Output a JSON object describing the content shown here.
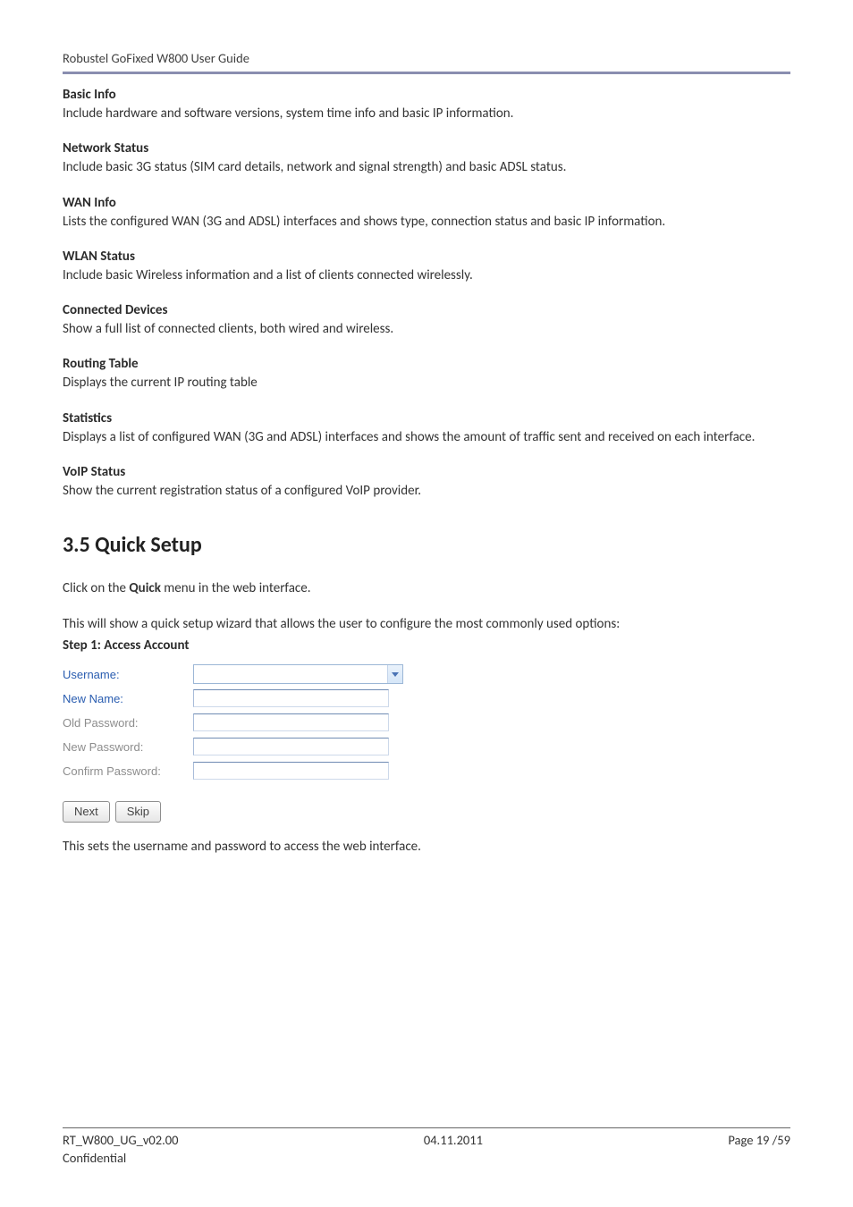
{
  "header": {
    "title": "Robustel GoFixed W800 User Guide"
  },
  "sections": [
    {
      "title": "Basic Info",
      "body": "Include hardware and software versions, system time info and basic IP information."
    },
    {
      "title": "Network Status",
      "body": "Include basic 3G status (SIM card details, network and signal strength) and basic ADSL status."
    },
    {
      "title": "WAN Info",
      "body": "Lists the configured WAN (3G and ADSL) interfaces and shows type, connection status and basic IP information."
    },
    {
      "title": "WLAN Status",
      "body": "Include basic Wireless information and a list of clients connected wirelessly."
    },
    {
      "title": "Connected Devices",
      "body": "Show a full list of connected clients, both wired and wireless."
    },
    {
      "title": "Routing Table",
      "body": "Displays the current IP routing table"
    },
    {
      "title": "Statistics",
      "body": "Displays a list of configured WAN (3G and ADSL) interfaces and shows the amount of traffic sent and received on each interface."
    },
    {
      "title": "VoIP Status",
      "body": "Show the current registration status of a configured VoIP provider."
    }
  ],
  "quicksetup": {
    "heading": "3.5 Quick Setup",
    "intro_pre": "Click on the ",
    "intro_bold": "Quick",
    "intro_post": " menu in the web interface.",
    "wizard_line": "This will show a quick setup wizard that allows the user to configure the most commonly used options:",
    "step_title": "Step 1: Access Account",
    "form": {
      "username_label": "Username:",
      "newname_label": "New Name:",
      "oldpass_label": "Old Password:",
      "newpass_label": "New Password:",
      "confirmpass_label": "Confirm Password:"
    },
    "buttons": {
      "next": "Next",
      "skip": "Skip"
    },
    "post_form": "This sets the username and password to access the web interface."
  },
  "footer": {
    "doc_id": "RT_W800_UG_v02.00",
    "date": "04.11.2011",
    "page": "Page 19 /59",
    "confidential": "Confidential"
  }
}
